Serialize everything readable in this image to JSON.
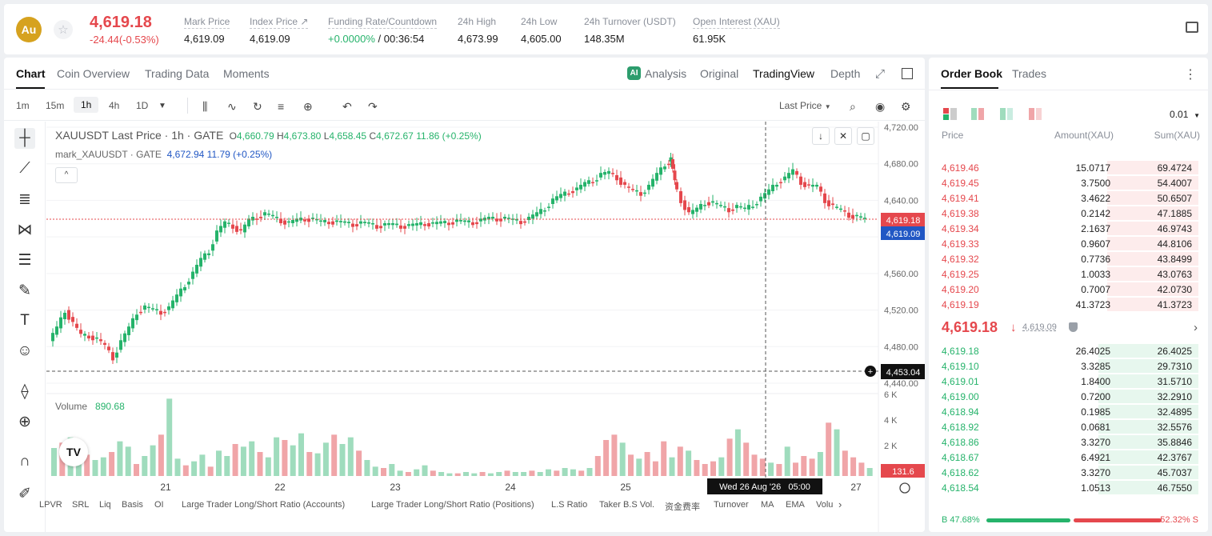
{
  "header": {
    "coin_symbol": "Au",
    "star_icon": "star-icon",
    "last_price": "4,619.18",
    "change": "-24.44(-0.53%)",
    "stats": [
      {
        "label": "Mark Price",
        "value": "4,619.09"
      },
      {
        "label": "Index Price ↗",
        "value": "4,619.09"
      },
      {
        "label": "Funding Rate/Countdown",
        "value_green": "+0.0000%",
        "value": " / 00:36:54"
      },
      {
        "label": "24h High",
        "value": "4,673.99"
      },
      {
        "label": "24h Low",
        "value": "4,605.00"
      },
      {
        "label": "24h Turnover (USDT)",
        "value": "148.35M"
      },
      {
        "label": "Open Interest (XAU)",
        "value": "61.95K"
      }
    ]
  },
  "chart_tabs": [
    "Chart",
    "Coin Overview",
    "Trading Data",
    "Moments"
  ],
  "view_options": {
    "analysis_badge": "AI",
    "analysis": "Analysis",
    "original": "Original",
    "tradingview": "TradingView",
    "depth": "Depth"
  },
  "timeframes": [
    "1m",
    "15m",
    "1h",
    "4h",
    "1D"
  ],
  "active_timeframe": "1h",
  "price_source": "Last Price",
  "legend": {
    "symbol": "XAUUSDT Last Price · 1h · GATE",
    "o_label": "O",
    "o": "4,660.79",
    "h_label": "H",
    "h": "4,673.80",
    "l_label": "L",
    "l": "4,658.45",
    "c_label": "C",
    "c": "4,672.67",
    "chg": "11.86 (+0.25%)",
    "mark_label": "mark_XAUUSDT · GATE",
    "mark_value": "4,672.94",
    "mark_chg": "11.79 (+0.25%)",
    "collapse": "^"
  },
  "volume": {
    "label": "Volume",
    "value": "890.68"
  },
  "price_axis_labels": [
    "4,720.00",
    "4,680.00",
    "4,640.00",
    "4,560.00",
    "4,520.00",
    "4,480.00",
    "4,440.00"
  ],
  "volume_axis_labels": [
    "6 K",
    "4 K",
    "2 K"
  ],
  "price_tag_last": "4,619.18",
  "price_tag_mark": "4,619.09",
  "crosshair_price": "4,453.04",
  "crosshair_time": "Wed 26 Aug '26   05:00",
  "volume_tag": "131.6",
  "date_labels": [
    "21",
    "22",
    "23",
    "24",
    "25",
    "27"
  ],
  "tv_logo": "TV",
  "indicators": [
    "LPVR",
    "SRL",
    "Liq",
    "Basis",
    "OI",
    "Large Trader Long/Short Ratio (Accounts)",
    "Large Trader Long/Short Ratio (Positions)",
    "L.S Ratio",
    "Taker B.S Vol.",
    "资金费率",
    "Turnover",
    "MA",
    "EMA",
    "Volu"
  ],
  "chart_data": {
    "type": "candlestick",
    "series": [
      {
        "name": "XAUUSDT Last Price"
      }
    ],
    "x_ticks": [
      "21",
      "22",
      "23",
      "24",
      "25",
      "27"
    ],
    "ylim": [
      4440,
      4720
    ],
    "close_points": [
      [
        0,
        4486
      ],
      [
        10,
        4500
      ],
      [
        20,
        4520
      ],
      [
        30,
        4505
      ],
      [
        40,
        4492
      ],
      [
        50,
        4492
      ],
      [
        60,
        4488
      ],
      [
        70,
        4480
      ],
      [
        80,
        4468
      ],
      [
        90,
        4485
      ],
      [
        100,
        4500
      ],
      [
        110,
        4518
      ],
      [
        120,
        4523
      ],
      [
        130,
        4520
      ],
      [
        140,
        4518
      ],
      [
        150,
        4522
      ],
      [
        160,
        4535
      ],
      [
        170,
        4548
      ],
      [
        180,
        4560
      ],
      [
        190,
        4575
      ],
      [
        200,
        4585
      ],
      [
        210,
        4605
      ],
      [
        220,
        4615
      ],
      [
        230,
        4612
      ],
      [
        240,
        4605
      ],
      [
        250,
        4618
      ],
      [
        260,
        4622
      ],
      [
        270,
        4625
      ],
      [
        280,
        4622
      ],
      [
        290,
        4618
      ],
      [
        300,
        4615
      ],
      [
        310,
        4618
      ],
      [
        320,
        4620
      ],
      [
        330,
        4619
      ],
      [
        340,
        4616
      ],
      [
        350,
        4617
      ],
      [
        360,
        4616
      ],
      [
        370,
        4615
      ],
      [
        380,
        4614
      ],
      [
        390,
        4615
      ],
      [
        400,
        4614
      ],
      [
        410,
        4612
      ],
      [
        420,
        4613
      ],
      [
        430,
        4613
      ],
      [
        440,
        4612
      ],
      [
        450,
        4612
      ],
      [
        460,
        4613
      ],
      [
        470,
        4615
      ],
      [
        480,
        4614
      ],
      [
        490,
        4615
      ],
      [
        500,
        4616
      ],
      [
        510,
        4617
      ],
      [
        520,
        4616
      ],
      [
        530,
        4616
      ],
      [
        540,
        4618
      ],
      [
        550,
        4620
      ],
      [
        560,
        4620
      ],
      [
        570,
        4620
      ],
      [
        580,
        4618
      ],
      [
        590,
        4617
      ],
      [
        600,
        4620
      ],
      [
        610,
        4625
      ],
      [
        620,
        4632
      ],
      [
        630,
        4640
      ],
      [
        640,
        4645
      ],
      [
        650,
        4650
      ],
      [
        660,
        4652
      ],
      [
        670,
        4658
      ],
      [
        680,
        4662
      ],
      [
        690,
        4668
      ],
      [
        700,
        4670
      ],
      [
        710,
        4665
      ],
      [
        720,
        4655
      ],
      [
        730,
        4650
      ],
      [
        740,
        4648
      ],
      [
        750,
        4655
      ],
      [
        760,
        4668
      ],
      [
        770,
        4680
      ],
      [
        775,
        4685
      ],
      [
        780,
        4660
      ],
      [
        790,
        4640
      ],
      [
        800,
        4625
      ],
      [
        810,
        4630
      ],
      [
        820,
        4638
      ],
      [
        830,
        4637
      ],
      [
        840,
        4633
      ],
      [
        850,
        4630
      ],
      [
        860,
        4633
      ],
      [
        870,
        4630
      ],
      [
        880,
        4636
      ],
      [
        890,
        4642
      ],
      [
        900,
        4650
      ],
      [
        910,
        4660
      ],
      [
        920,
        4664
      ],
      [
        930,
        4672
      ],
      [
        940,
        4660
      ],
      [
        950,
        4655
      ],
      [
        960,
        4655
      ],
      [
        970,
        4640
      ],
      [
        980,
        4633
      ],
      [
        990,
        4629
      ],
      [
        1000,
        4624
      ],
      [
        1010,
        4622
      ],
      [
        1020,
        4619
      ]
    ],
    "volume_values": [
      2.1,
      2.5,
      2.9,
      1.8,
      1.6,
      1.2,
      1.4,
      1.8,
      2.6,
      2.2,
      0.9,
      1.5,
      2.3,
      3.1,
      5.8,
      1.3,
      0.8,
      1.1,
      1.6,
      0.7,
      1.9,
      1.5,
      2.4,
      2.2,
      2.6,
      1.8,
      1.4,
      2.9,
      2.7,
      2.3,
      3.2,
      1.8,
      1.7,
      2.5,
      3.1,
      2.4,
      2.9,
      1.9,
      1.2,
      0.7,
      0.6,
      0.9,
      0.4,
      0.3,
      0.5,
      0.8,
      0.4,
      0.3,
      0.2,
      0.2,
      0.3,
      0.2,
      0.3,
      0.2,
      0.3,
      0.4,
      0.3,
      0.3,
      0.4,
      0.3,
      0.5,
      0.4,
      0.6,
      0.5,
      0.4,
      0.6,
      1.5,
      2.7,
      3.1,
      2.5,
      1.6,
      1.3,
      1.8,
      1.1,
      2.6,
      1.4,
      2.2,
      1.9,
      1.2,
      0.9,
      1.1,
      1.4,
      2.8,
      3.5,
      2.5,
      1.6,
      1.3,
      1.0,
      0.9,
      2.2,
      1.0,
      1.5,
      1.3,
      1.8,
      4.0,
      3.5,
      1.9,
      1.4,
      1.0,
      0.6
    ],
    "volume_ylim": [
      0,
      6000
    ]
  },
  "order_book": {
    "tabs": [
      "Order Book",
      "Trades"
    ],
    "precision": "0.01",
    "col_price": "Price",
    "col_amount": "Amount(XAU)",
    "col_sum": "Sum(XAU)",
    "asks": [
      {
        "price": "4,619.46",
        "amount": "15.0717",
        "sum": "69.4724",
        "depth": 0.52
      },
      {
        "price": "4,619.45",
        "amount": "3.7500",
        "sum": "54.4007",
        "depth": 0.52
      },
      {
        "price": "4,619.41",
        "amount": "3.4622",
        "sum": "50.6507",
        "depth": 0.52
      },
      {
        "price": "4,619.38",
        "amount": "0.2142",
        "sum": "47.1885",
        "depth": 0.52
      },
      {
        "price": "4,619.34",
        "amount": "2.1637",
        "sum": "46.9743",
        "depth": 0.52
      },
      {
        "price": "4,619.33",
        "amount": "0.9607",
        "sum": "44.8106",
        "depth": 0.52
      },
      {
        "price": "4,619.32",
        "amount": "0.7736",
        "sum": "43.8499",
        "depth": 0.52
      },
      {
        "price": "4,619.25",
        "amount": "1.0033",
        "sum": "43.0763",
        "depth": 0.52
      },
      {
        "price": "4,619.20",
        "amount": "0.7007",
        "sum": "42.0730",
        "depth": 0.52
      },
      {
        "price": "4,619.19",
        "amount": "41.3723",
        "sum": "41.3723",
        "depth": 0.52
      }
    ],
    "mid_price": "4,619.18",
    "mid_arrow": "↓",
    "mid_mark": "4,619.09",
    "mid_chevron": "›",
    "bids": [
      {
        "price": "4,619.18",
        "amount": "26.4025",
        "sum": "26.4025",
        "depth": 0.57
      },
      {
        "price": "4,619.10",
        "amount": "3.3285",
        "sum": "29.7310",
        "depth": 0.57
      },
      {
        "price": "4,619.01",
        "amount": "1.8400",
        "sum": "31.5710",
        "depth": 0.57
      },
      {
        "price": "4,619.00",
        "amount": "0.7200",
        "sum": "32.2910",
        "depth": 0.57
      },
      {
        "price": "4,618.94",
        "amount": "0.1985",
        "sum": "32.4895",
        "depth": 0.57
      },
      {
        "price": "4,618.92",
        "amount": "0.0681",
        "sum": "32.5576",
        "depth": 0.57
      },
      {
        "price": "4,618.86",
        "amount": "3.3270",
        "sum": "35.8846",
        "depth": 0.57
      },
      {
        "price": "4,618.67",
        "amount": "6.4921",
        "sum": "42.3767",
        "depth": 0.57
      },
      {
        "price": "4,618.62",
        "amount": "3.3270",
        "sum": "45.7037",
        "depth": 0.57
      },
      {
        "price": "4,618.54",
        "amount": "1.0513",
        "sum": "46.7550",
        "depth": 0.57
      }
    ],
    "buy_ratio": "B 47.68%",
    "sell_ratio": "52.32% S",
    "buy_fraction": 0.4768
  },
  "colors": {
    "up": "#26b36b",
    "down": "#e5484d",
    "up_volume": "#9fdcbd",
    "down_volume": "#f0a5a8",
    "accent": "#2157c4"
  }
}
